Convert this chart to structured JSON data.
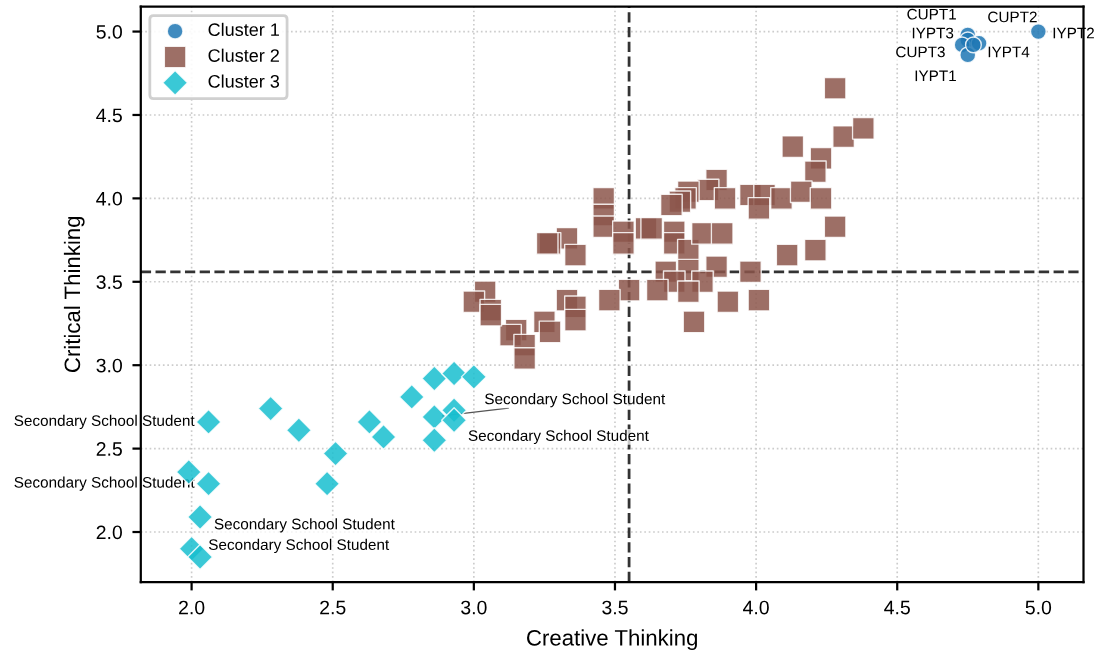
{
  "chart_data": {
    "type": "scatter",
    "xlabel": "Creative Thinking",
    "ylabel": "Critical Thinking",
    "xlim": [
      1.82,
      5.16
    ],
    "ylim": [
      1.7,
      5.15
    ],
    "xticks": [
      {
        "value": 2,
        "label": "2.0"
      },
      2.5,
      {
        "value": 3,
        "label": "3.0"
      },
      3.5,
      {
        "value": 4,
        "label": "4.0"
      },
      4.5,
      {
        "value": 5,
        "label": "5.0"
      }
    ],
    "yticks": [
      {
        "value": 2,
        "label": "2.0"
      },
      2.5,
      {
        "value": 3,
        "label": "3.0"
      },
      3.5,
      {
        "value": 4,
        "label": "4.0"
      },
      4.5,
      {
        "value": 5,
        "label": "5.0"
      }
    ],
    "grid": true,
    "legend": "top left",
    "ref_lines": [
      {
        "axis": "x",
        "value": 3.55,
        "line_style": "dashed"
      },
      {
        "axis": "y",
        "value": 3.56,
        "line_style": "dashed"
      }
    ],
    "series": [
      {
        "name": "Cluster 1",
        "color": "#1f77b4",
        "marker": "circle",
        "x": [
          4.75,
          4.75,
          4.73,
          4.75,
          4.79,
          4.77,
          5.0
        ],
        "values": [
          4.98,
          4.95,
          4.92,
          4.86,
          4.93,
          4.92,
          5.0
        ]
      },
      {
        "name": "Cluster 2",
        "color": "#8c564b",
        "marker": "square",
        "x": [
          4.28,
          4.31,
          4.38,
          4.13,
          4.23,
          4.21,
          3.86,
          3.83,
          3.89,
          3.76,
          3.75,
          3.73,
          3.7,
          3.98,
          4.03,
          4.09,
          4.16,
          4.23,
          4.01,
          3.46,
          3.46,
          3.46,
          3.33,
          3.27,
          3.36,
          3.53,
          3.53,
          3.61,
          3.63,
          3.71,
          3.71,
          3.76,
          3.81,
          3.88,
          4.28,
          4.11,
          4.21,
          3.68,
          3.76,
          3.86,
          3.98,
          3.71,
          3.81,
          3.65,
          3.76,
          3.9,
          4.01,
          3.55,
          3.48,
          3.33,
          3.36,
          3.04,
          3.0,
          3.06,
          3.26,
          3.15,
          3.13,
          3.18,
          3.18,
          3.06,
          3.25,
          3.78,
          3.36,
          3.27
        ],
        "values": [
          4.66,
          4.37,
          4.42,
          4.31,
          4.24,
          4.16,
          4.11,
          4.05,
          4.0,
          4.04,
          4.0,
          3.98,
          3.96,
          4.02,
          4.02,
          4.0,
          4.04,
          4.0,
          3.94,
          4.0,
          3.9,
          3.83,
          3.76,
          3.73,
          3.66,
          3.8,
          3.73,
          3.82,
          3.82,
          3.8,
          3.73,
          3.69,
          3.79,
          3.79,
          3.83,
          3.66,
          3.69,
          3.56,
          3.57,
          3.59,
          3.56,
          3.5,
          3.5,
          3.45,
          3.44,
          3.38,
          3.39,
          3.45,
          3.39,
          3.39,
          3.35,
          3.44,
          3.38,
          3.33,
          3.73,
          3.21,
          3.18,
          3.12,
          3.04,
          3.3,
          3.26,
          3.26,
          3.27,
          3.2
        ]
      },
      {
        "name": "Cluster 3",
        "color": "#17becf",
        "marker": "diamond",
        "x": [
          2.06,
          2.28,
          2.38,
          2.63,
          2.68,
          2.78,
          2.86,
          2.93,
          3.0,
          2.86,
          2.93,
          2.93,
          2.86,
          2.51,
          2.48,
          1.99,
          2.06,
          2.03,
          2.0,
          2.03
        ],
        "values": [
          2.66,
          2.74,
          2.61,
          2.66,
          2.57,
          2.81,
          2.92,
          2.95,
          2.93,
          2.69,
          2.73,
          2.67,
          2.55,
          2.47,
          2.29,
          2.36,
          2.29,
          2.09,
          1.9,
          1.85
        ]
      }
    ],
    "annotations": [
      {
        "text": "CUPT1",
        "x": 4.75,
        "y": 4.98
      },
      {
        "text": "IYPT3",
        "x": 4.75,
        "y": 4.95
      },
      {
        "text": "CUPT3",
        "x": 4.73,
        "y": 4.92
      },
      {
        "text": "IYPT1",
        "x": 4.75,
        "y": 4.86
      },
      {
        "text": "CUPT2",
        "x": 4.79,
        "y": 4.93
      },
      {
        "text": "IYPT4",
        "x": 4.77,
        "y": 4.92
      },
      {
        "text": "IYPT2",
        "x": 5.0,
        "y": 5.0
      },
      {
        "text": "Secondary School Student",
        "x": 2.06,
        "y": 2.66
      },
      {
        "text": "Secondary School Student",
        "x": 2.06,
        "y": 2.29
      },
      {
        "text": "Secondary School Student",
        "x": 2.03,
        "y": 2.09
      },
      {
        "text": "Secondary School Student",
        "x": 2.0,
        "y": 1.9
      },
      {
        "text": "Secondary School Student",
        "x": 2.86,
        "y": 2.69
      },
      {
        "text": "Secondary School Student",
        "x": 2.93,
        "y": 2.67
      }
    ]
  }
}
